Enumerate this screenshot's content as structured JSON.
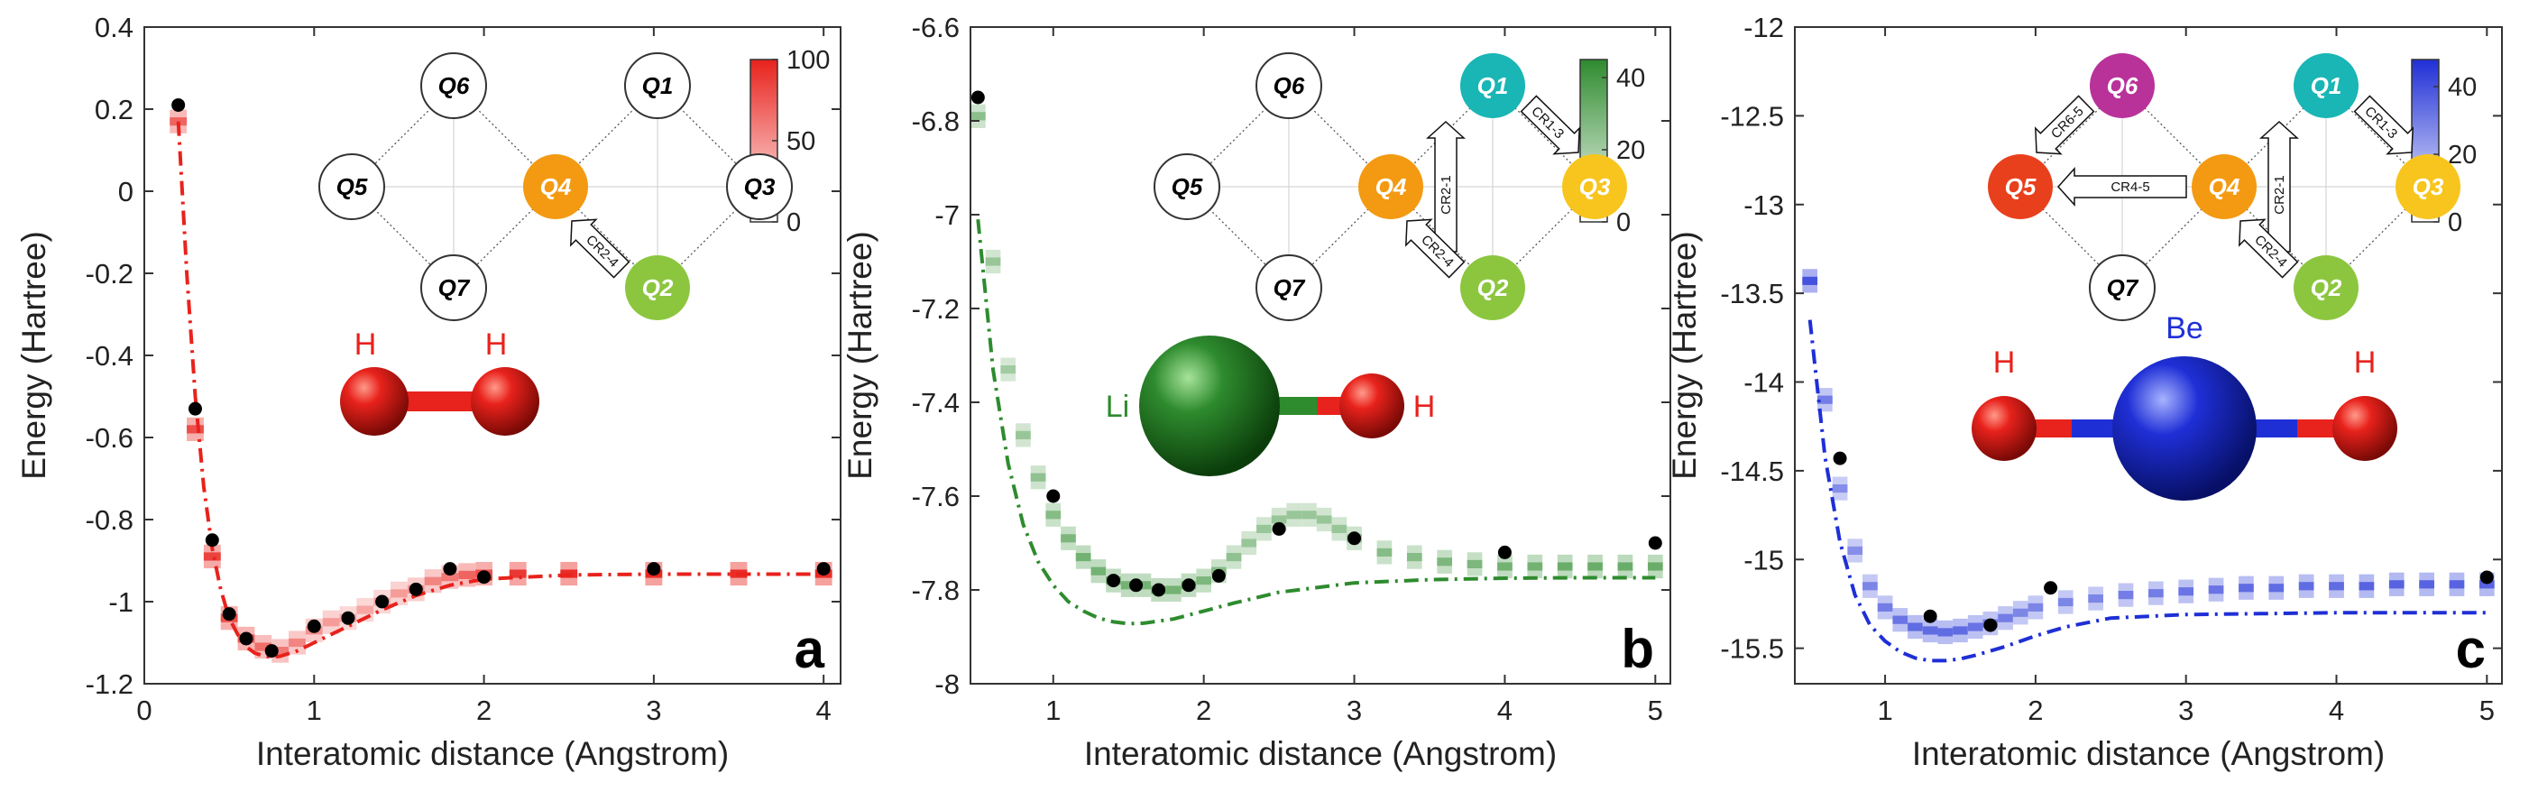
{
  "colors": {
    "red": "#e8221c",
    "green": "#2e8b2e",
    "blue": "#1f2fd6"
  },
  "chart_data": [
    {
      "panel": "a",
      "type": "line",
      "xlabel": "Interatomic distance (Angstrom)",
      "ylabel": "Energy (Hartree)",
      "xlim": [
        0,
        4.1
      ],
      "ylim": [
        -1.2,
        0.4
      ],
      "xticks": [
        0,
        1,
        2,
        3,
        4
      ],
      "xtick_labels": [
        "0",
        "1",
        "2",
        "3",
        "4"
      ],
      "yticks": [
        0.4,
        0.2,
        0,
        -0.2,
        -0.4,
        -0.6,
        -0.8,
        -1,
        -1.2
      ],
      "ytick_labels": [
        "0.4",
        "0.2",
        "0",
        "-0.2",
        "-0.4",
        "-0.6",
        "-0.8",
        "-1",
        "-1.2"
      ],
      "color": "#e8221c",
      "exact_curve": {
        "x": [
          0.2,
          0.25,
          0.3,
          0.35,
          0.4,
          0.45,
          0.5,
          0.55,
          0.6,
          0.65,
          0.7,
          0.75,
          0.8,
          0.9,
          1.0,
          1.2,
          1.4,
          1.6,
          1.8,
          2.0,
          2.5,
          3.0,
          3.5,
          4.0
        ],
        "y": [
          0.17,
          -0.2,
          -0.5,
          -0.72,
          -0.87,
          -0.97,
          -1.04,
          -1.08,
          -1.11,
          -1.125,
          -1.132,
          -1.135,
          -1.133,
          -1.12,
          -1.1,
          -1.06,
          -1.02,
          -0.985,
          -0.96,
          -0.945,
          -0.935,
          -0.933,
          -0.933,
          -0.933
        ]
      },
      "measured_points": {
        "x": [
          0.2,
          0.3,
          0.4,
          0.5,
          0.6,
          0.75,
          1.0,
          1.2,
          1.4,
          1.6,
          1.8,
          2.0,
          3.0,
          4.0
        ],
        "y": [
          0.21,
          -0.53,
          -0.85,
          -1.03,
          -1.09,
          -1.12,
          -1.06,
          -1.04,
          -1.0,
          -0.97,
          -0.92,
          -0.94,
          -0.92,
          -0.92
        ]
      },
      "histogram": {
        "x": [
          0.2,
          0.3,
          0.4,
          0.5,
          0.6,
          0.7,
          0.8,
          0.9,
          1.0,
          1.1,
          1.2,
          1.3,
          1.4,
          1.5,
          1.6,
          1.7,
          1.8,
          1.9,
          2.0,
          2.2,
          2.5,
          3.0,
          3.5,
          4.0
        ],
        "y": [
          0.17,
          -0.58,
          -0.89,
          -1.04,
          -1.09,
          -1.11,
          -1.12,
          -1.1,
          -1.07,
          -1.05,
          -1.04,
          -1.02,
          -1.0,
          -0.98,
          -0.97,
          -0.95,
          -0.94,
          -0.935,
          -0.932,
          -0.932,
          -0.932,
          -0.932,
          -0.932,
          -0.932
        ],
        "intensity": [
          70,
          80,
          85,
          80,
          75,
          65,
          60,
          55,
          50,
          45,
          40,
          40,
          40,
          45,
          50,
          55,
          60,
          70,
          80,
          90,
          95,
          95,
          95,
          95
        ]
      },
      "colorbar": {
        "min": 0,
        "max": 100,
        "ticks": [
          0,
          50,
          100
        ],
        "tick_labels": [
          "0",
          "50",
          "100"
        ]
      },
      "molecule": [
        "H",
        "H"
      ]
    },
    {
      "panel": "b",
      "type": "line",
      "xlabel": "Interatomic distance (Angstrom)",
      "ylabel": "Energy (Hartree)",
      "xlim": [
        0.45,
        5.1
      ],
      "ylim": [
        -8.0,
        -6.6
      ],
      "xticks": [
        1,
        2,
        3,
        4,
        5
      ],
      "xtick_labels": [
        "1",
        "2",
        "3",
        "4",
        "5"
      ],
      "yticks": [
        -6.6,
        -6.8,
        -7,
        -7.2,
        -7.4,
        -7.6,
        -7.8,
        -8
      ],
      "ytick_labels": [
        "-6.6",
        "-6.8",
        "-7",
        "-7.2",
        "-7.4",
        "-7.6",
        "-7.8",
        "-8"
      ],
      "color": "#2e8b2e",
      "exact_curve": {
        "x": [
          0.5,
          0.6,
          0.7,
          0.8,
          0.9,
          1.0,
          1.1,
          1.2,
          1.3,
          1.4,
          1.5,
          1.6,
          1.8,
          2.0,
          2.2,
          2.5,
          3.0,
          3.5,
          4.0,
          4.5,
          5.0
        ],
        "y": [
          -7.01,
          -7.33,
          -7.53,
          -7.66,
          -7.74,
          -7.79,
          -7.825,
          -7.845,
          -7.86,
          -7.868,
          -7.872,
          -7.871,
          -7.862,
          -7.845,
          -7.828,
          -7.805,
          -7.785,
          -7.778,
          -7.775,
          -7.774,
          -7.774
        ]
      },
      "measured_points": {
        "x": [
          0.5,
          1.0,
          1.4,
          1.55,
          1.7,
          1.9,
          2.1,
          2.5,
          3.0,
          4.0,
          5.0
        ],
        "y": [
          -6.75,
          -7.6,
          -7.78,
          -7.79,
          -7.8,
          -7.79,
          -7.77,
          -7.67,
          -7.69,
          -7.72,
          -7.7
        ]
      },
      "histogram": {
        "x": [
          0.5,
          0.6,
          0.7,
          0.8,
          0.9,
          1.0,
          1.1,
          1.2,
          1.3,
          1.4,
          1.5,
          1.6,
          1.7,
          1.8,
          1.9,
          2.0,
          2.1,
          2.2,
          2.3,
          2.4,
          2.5,
          2.6,
          2.7,
          2.8,
          2.9,
          3.0,
          3.2,
          3.4,
          3.6,
          3.8,
          4.0,
          4.2,
          4.4,
          4.6,
          4.8,
          5.0
        ],
        "y": [
          -6.79,
          -7.1,
          -7.33,
          -7.47,
          -7.56,
          -7.64,
          -7.69,
          -7.73,
          -7.76,
          -7.78,
          -7.79,
          -7.79,
          -7.8,
          -7.8,
          -7.79,
          -7.78,
          -7.76,
          -7.73,
          -7.7,
          -7.67,
          -7.65,
          -7.64,
          -7.64,
          -7.65,
          -7.67,
          -7.69,
          -7.72,
          -7.73,
          -7.74,
          -7.745,
          -7.75,
          -7.75,
          -7.75,
          -7.75,
          -7.75,
          -7.75
        ],
        "intensity": [
          25,
          22,
          20,
          22,
          24,
          26,
          28,
          30,
          30,
          30,
          30,
          30,
          30,
          30,
          30,
          28,
          26,
          24,
          22,
          22,
          22,
          22,
          22,
          22,
          22,
          24,
          26,
          26,
          28,
          28,
          30,
          30,
          32,
          32,
          32,
          32
        ]
      },
      "colorbar": {
        "min": 0,
        "max": 45,
        "ticks": [
          0,
          20,
          40
        ],
        "tick_labels": [
          "0",
          "20",
          "40"
        ]
      },
      "molecule": [
        "Li",
        "H"
      ]
    },
    {
      "panel": "c",
      "type": "line",
      "xlabel": "Interatomic distance (Angstrom)",
      "ylabel": "Energy (Hartree)",
      "xlim": [
        0.4,
        5.1
      ],
      "ylim": [
        -15.7,
        -12.0
      ],
      "xticks": [
        1,
        2,
        3,
        4,
        5
      ],
      "xtick_labels": [
        "1",
        "2",
        "3",
        "4",
        "5"
      ],
      "yticks": [
        -12,
        -12.5,
        -13,
        -13.5,
        -14,
        -14.5,
        -15,
        -15.5
      ],
      "ytick_labels": [
        "-12",
        "-12.5",
        "-13",
        "-13.5",
        "-14",
        "-14.5",
        "-15",
        "-15.5"
      ],
      "color": "#1f2fd6",
      "exact_curve": {
        "x": [
          0.5,
          0.6,
          0.7,
          0.8,
          0.9,
          1.0,
          1.1,
          1.2,
          1.3,
          1.4,
          1.5,
          1.6,
          1.8,
          2.0,
          2.2,
          2.5,
          3.0,
          3.5,
          4.0,
          4.5,
          5.0
        ],
        "y": [
          -13.65,
          -14.42,
          -14.9,
          -15.2,
          -15.37,
          -15.46,
          -15.52,
          -15.555,
          -15.57,
          -15.57,
          -15.56,
          -15.54,
          -15.49,
          -15.43,
          -15.38,
          -15.33,
          -15.31,
          -15.305,
          -15.3,
          -15.3,
          -15.3
        ]
      },
      "measured_points": {
        "x": [
          0.7,
          1.3,
          1.7,
          2.1,
          5.0
        ],
        "y": [
          -14.43,
          -15.32,
          -15.37,
          -15.16,
          -15.1
        ]
      },
      "histogram": {
        "x": [
          0.5,
          0.6,
          0.7,
          0.8,
          0.9,
          1.0,
          1.1,
          1.2,
          1.3,
          1.4,
          1.5,
          1.6,
          1.7,
          1.8,
          1.9,
          2.0,
          2.2,
          2.4,
          2.6,
          2.8,
          3.0,
          3.2,
          3.4,
          3.6,
          3.8,
          4.0,
          4.2,
          4.4,
          4.6,
          4.8,
          5.0
        ],
        "y": [
          -13.43,
          -14.1,
          -14.6,
          -14.95,
          -15.15,
          -15.27,
          -15.34,
          -15.38,
          -15.4,
          -15.41,
          -15.4,
          -15.38,
          -15.36,
          -15.33,
          -15.3,
          -15.27,
          -15.24,
          -15.22,
          -15.2,
          -15.19,
          -15.18,
          -15.17,
          -15.16,
          -15.16,
          -15.15,
          -15.15,
          -15.15,
          -15.14,
          -15.14,
          -15.14,
          -15.14
        ],
        "intensity": [
          40,
          30,
          26,
          26,
          28,
          30,
          32,
          34,
          34,
          34,
          34,
          32,
          30,
          30,
          28,
          28,
          28,
          28,
          30,
          30,
          32,
          32,
          34,
          34,
          34,
          34,
          36,
          36,
          36,
          36,
          36
        ]
      },
      "colorbar": {
        "min": 0,
        "max": 48,
        "ticks": [
          0,
          20,
          40
        ],
        "tick_labels": [
          "0",
          "20",
          "40"
        ]
      },
      "molecule": [
        "H",
        "Be",
        "H"
      ]
    }
  ],
  "qubit_graphs": [
    {
      "panel": "a",
      "nodes": [
        {
          "label": "Q6",
          "active": false,
          "color": ""
        },
        {
          "label": "Q1",
          "active": false,
          "color": ""
        },
        {
          "label": "Q5",
          "active": false,
          "color": ""
        },
        {
          "label": "Q4",
          "active": true,
          "color": "#f39a12"
        },
        {
          "label": "Q3",
          "active": false,
          "color": ""
        },
        {
          "label": "Q7",
          "active": false,
          "color": ""
        },
        {
          "label": "Q2",
          "active": true,
          "color": "#8cc63f"
        }
      ],
      "gates": [
        "CR2-4"
      ]
    },
    {
      "panel": "b",
      "nodes": [
        {
          "label": "Q6",
          "active": false,
          "color": ""
        },
        {
          "label": "Q1",
          "active": true,
          "color": "#1ab5b5"
        },
        {
          "label": "Q5",
          "active": false,
          "color": ""
        },
        {
          "label": "Q4",
          "active": true,
          "color": "#f39a12"
        },
        {
          "label": "Q3",
          "active": true,
          "color": "#f7c51e"
        },
        {
          "label": "Q7",
          "active": false,
          "color": ""
        },
        {
          "label": "Q2",
          "active": true,
          "color": "#8cc63f"
        }
      ],
      "gates": [
        "CR1-3",
        "CR2-1",
        "CR2-4"
      ]
    },
    {
      "panel": "c",
      "nodes": [
        {
          "label": "Q6",
          "active": true,
          "color": "#b8329a"
        },
        {
          "label": "Q1",
          "active": true,
          "color": "#1ab5b5"
        },
        {
          "label": "Q5",
          "active": true,
          "color": "#e8401c"
        },
        {
          "label": "Q4",
          "active": true,
          "color": "#f39a12"
        },
        {
          "label": "Q3",
          "active": true,
          "color": "#f7c51e"
        },
        {
          "label": "Q7",
          "active": false,
          "color": ""
        },
        {
          "label": "Q2",
          "active": true,
          "color": "#8cc63f"
        }
      ],
      "gates": [
        "CR6-5",
        "CR4-5",
        "CR1-3",
        "CR2-1",
        "CR2-4"
      ]
    }
  ]
}
